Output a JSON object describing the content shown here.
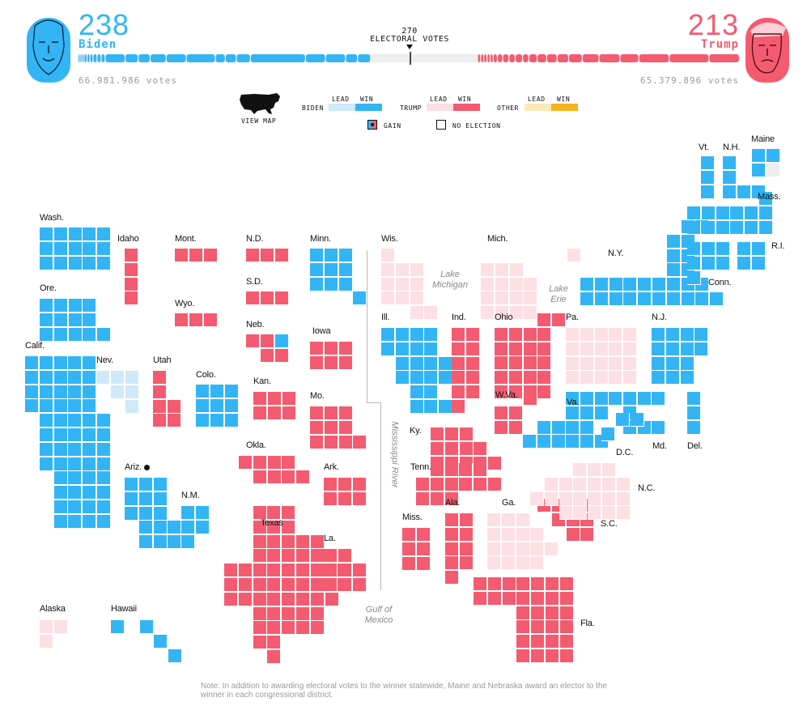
{
  "colors": {
    "dem_win": "#33b5f5",
    "dem_lead": "#cfe9f8",
    "rep_win": "#f45b70",
    "rep_lead": "#fde0e4",
    "oth_lead": "#fbe9b8",
    "oth_win": "#f6b31f",
    "none": "#eeeeee",
    "text": "#111111"
  },
  "header": {
    "biden": {
      "count": "238",
      "name": "Biden",
      "votes": "66.981.986 votes",
      "photo_icon": "biden-portrait-icon"
    },
    "trump": {
      "count": "213",
      "name": "Trump",
      "votes": "65.379.896 votes",
      "photo_icon": "trump-portrait-icon"
    },
    "threshold": {
      "number": "270",
      "label": "ELECTORAL VOTES",
      "marker_icon": "triangle-down-icon"
    },
    "bar": {
      "total": 538,
      "biden": 238,
      "trump": 213,
      "threshold": 270
    }
  },
  "legend": {
    "view_map": "VIEW MAP",
    "view_map_icon": "us-map-icon",
    "lead": "LEAD",
    "win": "WIN",
    "biden": "BIDEN",
    "trump": "TRUMP",
    "other": "OTHER",
    "gain": "GAIN",
    "gain_icon": "gain-dot-icon",
    "no_election": "NO ELECTION"
  },
  "map": {
    "states": [
      {
        "label": "Wash.",
        "status": "dem_win",
        "rows": [
          "11111",
          "11111",
          "11111"
        ]
      },
      {
        "label": "Ore.",
        "status": "dem_win",
        "rows": [
          "1111",
          "1111",
          "11111"
        ]
      },
      {
        "label": "Calif.",
        "status": "dem_win",
        "rows": [
          "11111",
          "11111",
          "11111",
          "11111",
          "011111",
          "011111",
          "011111",
          "011111",
          "001111",
          "001111",
          "001111",
          "001111"
        ]
      },
      {
        "label": "Nev.",
        "status": "dem_lead",
        "rows": [
          "111",
          "011",
          "001"
        ]
      },
      {
        "label": "Idaho",
        "status": "rep_win",
        "rows": [
          "1",
          "1",
          "1",
          "1"
        ]
      },
      {
        "label": "Utah",
        "status": "rep_win",
        "rows": [
          "1",
          "1",
          "11",
          "11"
        ]
      },
      {
        "label": "Ariz.",
        "status": "dem_win",
        "gain": true,
        "rows": [
          "111",
          "111",
          "111",
          "0111",
          "0111"
        ]
      },
      {
        "label": "Mont.",
        "status": "rep_win",
        "rows": [
          "111"
        ]
      },
      {
        "label": "Wyo.",
        "status": "rep_win",
        "rows": [
          "111"
        ]
      },
      {
        "label": "Colo.",
        "status": "dem_win",
        "rows": [
          "111",
          "111",
          "111"
        ]
      },
      {
        "label": "N.M.",
        "status": "dem_win",
        "rows": [
          "11",
          "11",
          "1"
        ]
      },
      {
        "label": "N.D.",
        "status": "rep_win",
        "rows": [
          "111"
        ]
      },
      {
        "label": "S.D.",
        "status": "rep_win",
        "rows": [
          "111"
        ]
      },
      {
        "label": "Neb.",
        "status": "rep_win",
        "rows": [
          "11d",
          "011"
        ]
      },
      {
        "label": "Kan.",
        "status": "rep_win",
        "rows": [
          "111",
          "111"
        ]
      },
      {
        "label": "Okla.",
        "status": "rep_win",
        "rows": [
          "1111",
          "01111"
        ]
      },
      {
        "label": "Texas",
        "status": "rep_win",
        "rows": [
          "00111",
          "00111",
          "0011111",
          "0011111",
          "11111111",
          "11111111",
          "11111111",
          "0011111",
          "0011111",
          "0011",
          "0001"
        ]
      },
      {
        "label": "Minn.",
        "status": "dem_win",
        "rows": [
          "111",
          "111",
          "111",
          "0001"
        ]
      },
      {
        "label": "Iowa",
        "status": "rep_win",
        "rows": [
          "111",
          "111"
        ]
      },
      {
        "label": "Mo.",
        "status": "rep_win",
        "rows": [
          "111",
          "111",
          "1111"
        ]
      },
      {
        "label": "Ark.",
        "status": "rep_win",
        "rows": [
          "111",
          "111"
        ]
      },
      {
        "label": "La.",
        "status": "rep_win",
        "rows": [
          "11",
          "111",
          "111"
        ]
      },
      {
        "label": "Wis.",
        "status": "rep_lead",
        "rows": [
          "1",
          "111",
          "111",
          "111",
          "0011"
        ]
      },
      {
        "label": "Ill.",
        "status": "dem_win",
        "rows": [
          "1111",
          "1111",
          "01111",
          "01111",
          "0011",
          "00111"
        ]
      },
      {
        "label": "Mich.",
        "status": "rep_lead",
        "rows": [
          "0000002",
          "111",
          "1111",
          "1111",
          "1111"
        ]
      },
      {
        "label": "Ind.",
        "status": "rep_win",
        "rows": [
          "11",
          "11",
          "11",
          "11",
          "11",
          "1"
        ]
      },
      {
        "label": "Ohio",
        "status": "rep_win",
        "rows": [
          "00011",
          "1111",
          "1111",
          "1111",
          "1111",
          "1111"
        ]
      },
      {
        "label": "Ky.",
        "status": "rep_win",
        "rows": [
          "111",
          "1111",
          "11111"
        ]
      },
      {
        "label": "Tenn.",
        "status": "rep_win",
        "rows": [
          "01111",
          "111111",
          "111"
        ]
      },
      {
        "label": "Miss.",
        "status": "rep_win",
        "rows": [
          "11",
          "11",
          "11"
        ]
      },
      {
        "label": "Ala.",
        "status": "rep_win",
        "rows": [
          "11",
          "11",
          "11",
          "11",
          "1"
        ]
      },
      {
        "label": "Ga.",
        "status": "rep_lead",
        "rows": [
          "111",
          "1111",
          "11111",
          "1111"
        ]
      },
      {
        "label": "Fla.",
        "status": "rep_win",
        "rows": [
          "1111111",
          "1111111",
          "0001111",
          "0001111",
          "0001111",
          "0001111"
        ]
      },
      {
        "label": "S.C.",
        "status": "rep_win",
        "rows": [
          "1111",
          "0111",
          "0011"
        ]
      },
      {
        "label": "N.C.",
        "status": "rep_lead",
        "rows": [
          "000111",
          "0111111",
          "1111111",
          "0011111"
        ]
      },
      {
        "label": "W.Va.",
        "status": "rep_win",
        "rows": [
          "001",
          "11",
          "11"
        ]
      },
      {
        "label": "Va.",
        "status": "dem_win",
        "rows": [
          "000111",
          "000111",
          "01111",
          "111111"
        ]
      },
      {
        "label": "Pa.",
        "status": "rep_lead",
        "rows": [
          "11111",
          "11111",
          "11111",
          "11111"
        ]
      },
      {
        "label": "N.Y.",
        "status": "dem_win",
        "rows": [
          "000000011",
          "00000011",
          "00000011",
          "00000011",
          "111111111",
          "1111111111"
        ]
      },
      {
        "label": "N.J.",
        "status": "dem_win",
        "rows": [
          "1111",
          "1111",
          "111",
          "111"
        ]
      },
      {
        "label": "Md.",
        "status": "dem_win",
        "rows": [
          "1111",
          "01",
          "0111"
        ]
      },
      {
        "label": "D.C.",
        "status": "dem_win",
        "rows": [
          "011",
          "1"
        ]
      },
      {
        "label": "Del.",
        "status": "dem_win",
        "rows": [
          "1",
          "1",
          "1"
        ]
      },
      {
        "label": "Vt.",
        "status": "dem_win",
        "rows": [
          "1",
          "1",
          "1"
        ]
      },
      {
        "label": "N.H.",
        "status": "dem_win",
        "rows": [
          "1",
          "1",
          "111"
        ]
      },
      {
        "label": "Maine",
        "status": "dem_win",
        "rows": [
          "11",
          "1n"
        ]
      },
      {
        "label": "Mass.",
        "status": "dem_win",
        "rows": [
          "000001",
          "111111",
          "111111"
        ]
      },
      {
        "label": "Conn.",
        "status": "dem_win",
        "rows": [
          "111",
          "111",
          "1"
        ]
      },
      {
        "label": "R.I.",
        "status": "dem_win",
        "rows": [
          "11",
          "11"
        ]
      },
      {
        "label": "Alaska",
        "status": "rep_lead",
        "rows": [
          "11",
          "1"
        ]
      },
      {
        "label": "Hawaii",
        "status": "dem_win",
        "rows": [
          "10100",
          "00010",
          "00001"
        ]
      }
    ],
    "geo_labels": {
      "lake_michigan": "Lake\nMichigan",
      "lake_erie": "Lake\nErie",
      "mississippi": "Mississippi River",
      "gulf": "Gulf of\nMexico"
    }
  },
  "note": "Note: In addition to awarding electoral votes to the winner statewide, Maine and Nebraska award an elector to the winner in each congressional district."
}
